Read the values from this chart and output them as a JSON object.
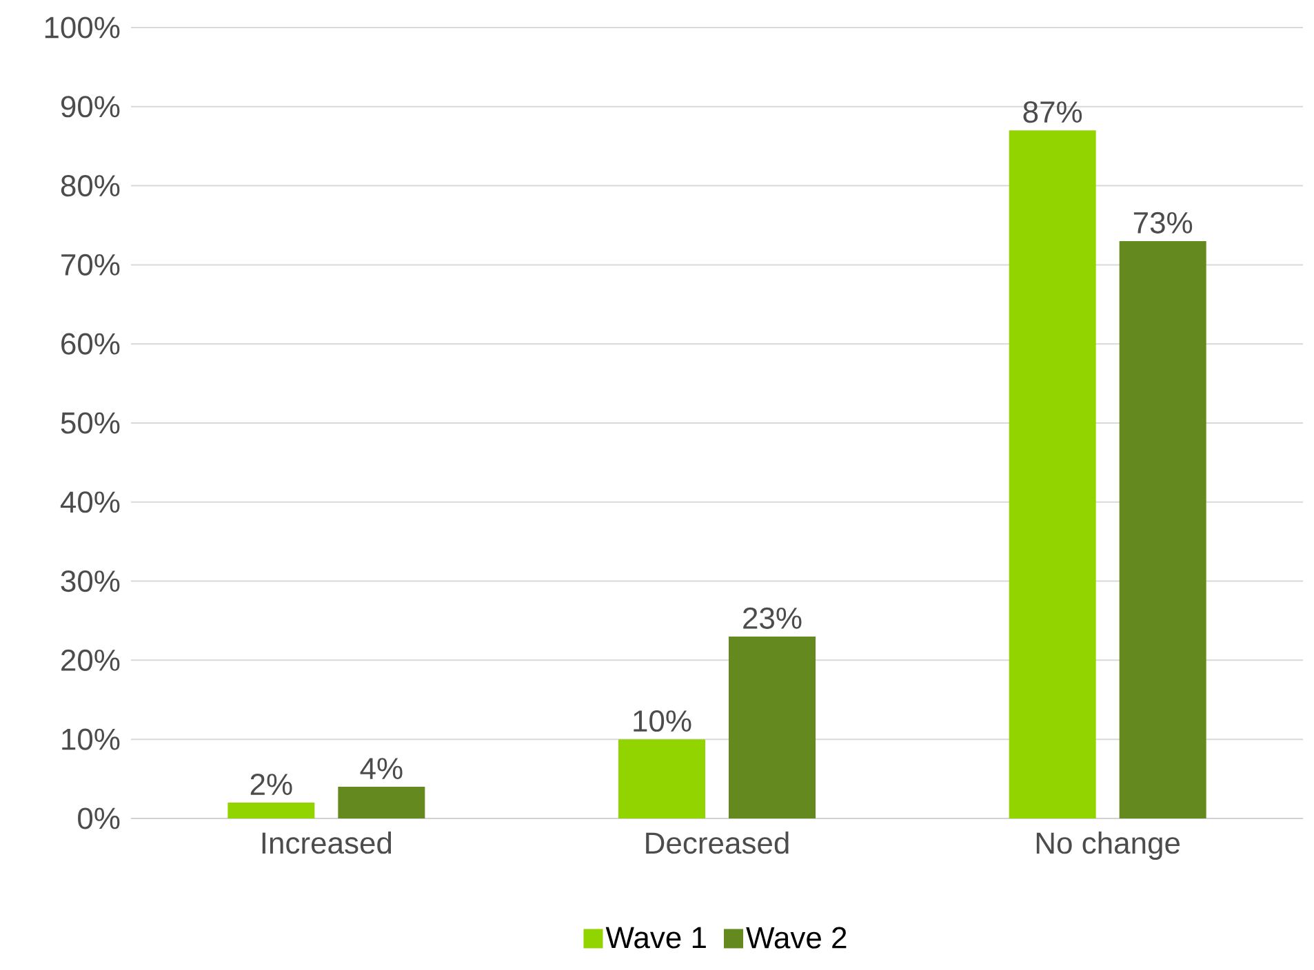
{
  "chart_data": {
    "type": "bar",
    "categories": [
      "Increased",
      "Decreased",
      "No change"
    ],
    "series": [
      {
        "name": "Wave 1",
        "color": "#92d400",
        "values": [
          2,
          10,
          87
        ],
        "value_labels": [
          "2%",
          "10%",
          "87%"
        ]
      },
      {
        "name": "Wave 2",
        "color": "#64891e",
        "values": [
          4,
          23,
          73
        ],
        "value_labels": [
          "4%",
          "23%",
          "73%"
        ]
      }
    ],
    "ylim": [
      0,
      100
    ],
    "yticks": [
      {
        "value": 0,
        "label": "0%"
      },
      {
        "value": 10,
        "label": "10%"
      },
      {
        "value": 20,
        "label": "20%"
      },
      {
        "value": 30,
        "label": "30%"
      },
      {
        "value": 40,
        "label": "40%"
      },
      {
        "value": 50,
        "label": "50%"
      },
      {
        "value": 60,
        "label": "60%"
      },
      {
        "value": 70,
        "label": "70%"
      },
      {
        "value": 80,
        "label": "80%"
      },
      {
        "value": 90,
        "label": "90%"
      },
      {
        "value": 100,
        "label": "100%"
      }
    ],
    "grid": "y",
    "legend": "bottom"
  }
}
